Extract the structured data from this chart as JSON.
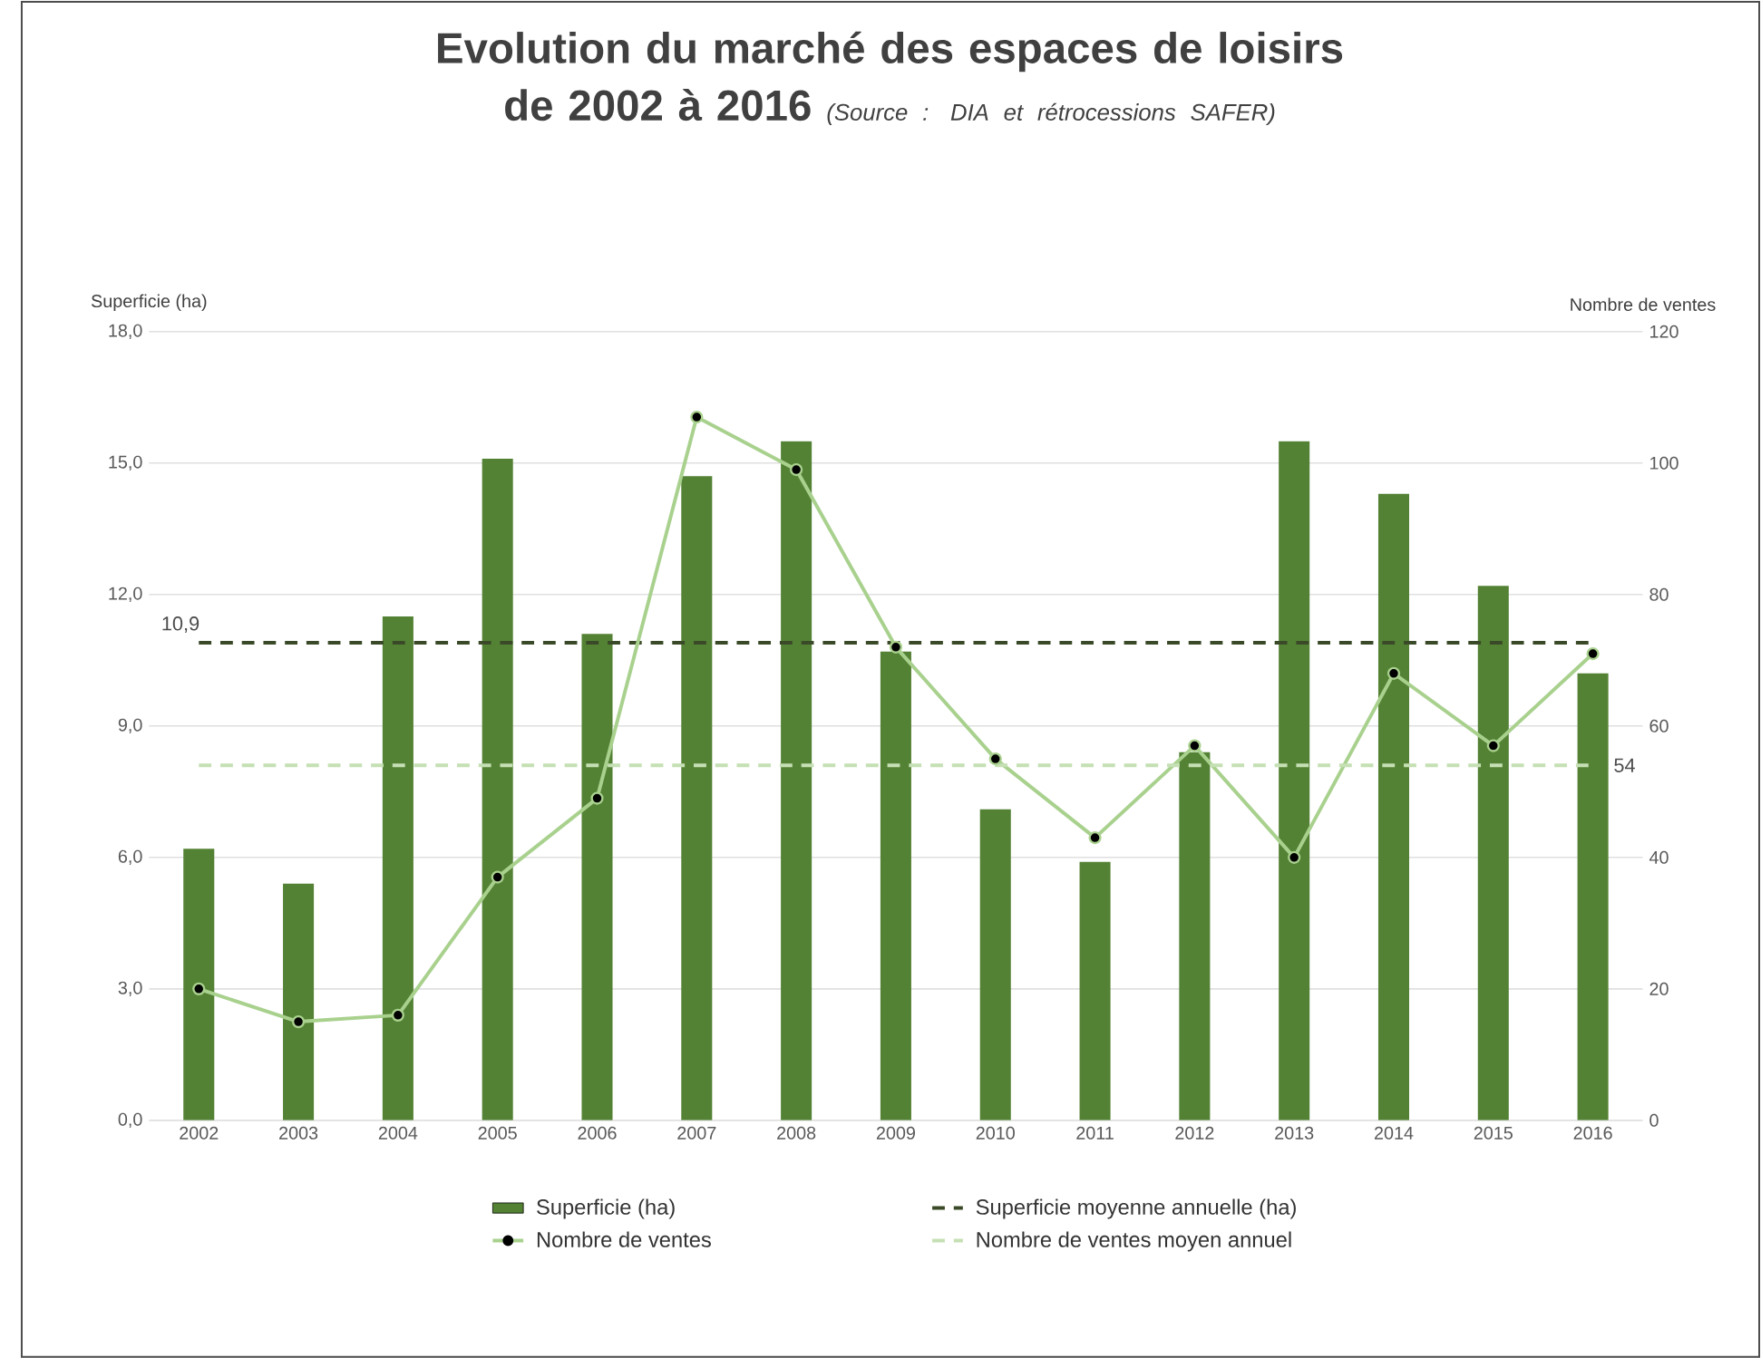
{
  "chart_data": {
    "type": "bar",
    "title": "Evolution du marché des espaces de loisirs de 2002 à 2016",
    "annotations": [
      "(Source : DIA et rétrocessions SAFER)"
    ],
    "ylabel": "Superficie (ha)",
    "y2label": "Nombre de ventes",
    "categories": [
      "2002",
      "2003",
      "2004",
      "2005",
      "2006",
      "2007",
      "2008",
      "2009",
      "2010",
      "2011",
      "2012",
      "2013",
      "2014",
      "2015",
      "2016"
    ],
    "series": [
      {
        "name": "Superficie (ha)",
        "color": "#548235",
        "values": [
          6.2,
          5.4,
          11.5,
          15.1,
          11.1,
          14.7,
          15.5,
          10.7,
          7.1,
          5.9,
          8.4,
          15.5,
          14.3,
          12.2,
          10.2
        ]
      },
      {
        "name": "Superficie moyenne annuelle (ha)",
        "type": "line",
        "color": "#3a4a28",
        "line_style": "dashed",
        "marker": "none",
        "values": [
          10.9,
          10.9,
          10.9,
          10.9,
          10.9,
          10.9,
          10.9,
          10.9,
          10.9,
          10.9,
          10.9,
          10.9,
          10.9,
          10.9,
          10.9
        ],
        "value_labels": [
          "10,9",
          null,
          null,
          null,
          null,
          null,
          null,
          null,
          null,
          null,
          null,
          null,
          null,
          null,
          null
        ]
      },
      {
        "name": "Nombre de ventes",
        "type": "line",
        "axis": "y2",
        "color": "#a9d18e",
        "line_style": "solid",
        "marker": "circle",
        "values": [
          20,
          15,
          16,
          37,
          49,
          107,
          99,
          72,
          55,
          43,
          57,
          40,
          68,
          57,
          71
        ]
      },
      {
        "name": "Nombre de ventes moyen annuel",
        "type": "line",
        "axis": "y2",
        "color": "#c5e0b4",
        "line_style": "dashed",
        "marker": "none",
        "values": [
          54,
          54,
          54,
          54,
          54,
          54,
          54,
          54,
          54,
          54,
          54,
          54,
          54,
          54,
          54
        ],
        "value_labels": [
          null,
          null,
          null,
          null,
          null,
          null,
          null,
          null,
          null,
          null,
          null,
          null,
          null,
          null,
          "54"
        ]
      }
    ],
    "ylim": [
      0,
      18
    ],
    "yticks": [
      {
        "value": 0,
        "label": "0,0"
      },
      {
        "value": 3,
        "label": "3,0"
      },
      {
        "value": 6,
        "label": "6,0"
      },
      {
        "value": 9,
        "label": "9,0"
      },
      {
        "value": 12,
        "label": "12,0"
      },
      {
        "value": 15,
        "label": "15,0"
      },
      {
        "value": 18,
        "label": "18,0"
      }
    ],
    "y2lim": [
      0,
      120
    ],
    "y2ticks": [
      0,
      20,
      40,
      60,
      80,
      100,
      120
    ],
    "grid": "y",
    "legend": "bottom"
  }
}
